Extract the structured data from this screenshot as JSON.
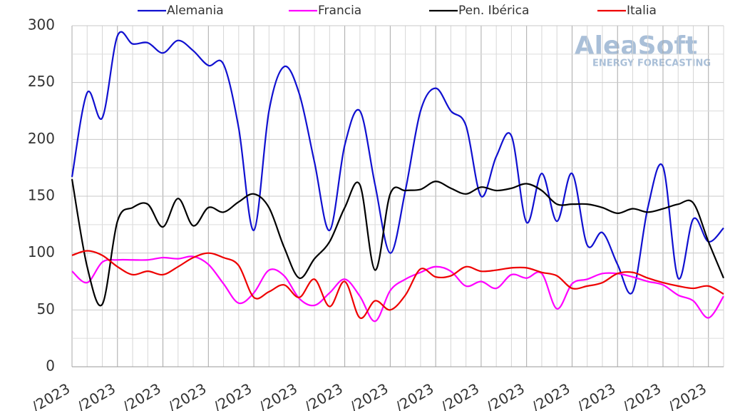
{
  "chart_data": {
    "type": "line",
    "watermark": {
      "brand": "AleaSoft",
      "tagline": "ENERGY FORECASTING"
    },
    "categories": [
      "/2023",
      null,
      null,
      "/2023",
      null,
      null,
      "/2023",
      null,
      null,
      "/2023",
      null,
      null,
      "/2023",
      null,
      null,
      "/2023",
      null,
      null,
      "/2023",
      null,
      null,
      "/2023",
      null,
      null,
      "/2023",
      null,
      null,
      "/2023",
      null,
      null,
      "/2023",
      null,
      null,
      "/2023",
      null,
      null,
      "/2023",
      null,
      null,
      "/2023",
      null,
      null,
      "/2023",
      null
    ],
    "series": [
      {
        "name": "Alemania",
        "color": "#1010d0",
        "values": [
          167,
          241,
          219,
          291,
          284,
          285,
          276,
          287,
          278,
          265,
          266,
          210,
          120,
          225,
          264,
          240,
          180,
          120,
          195,
          225,
          160,
          100,
          155,
          225,
          245,
          225,
          212,
          150,
          185,
          203,
          127,
          170,
          128,
          170,
          107,
          118,
          90,
          66,
          140,
          176,
          78,
          130,
          110,
          122
        ]
      },
      {
        "name": "Francia",
        "color": "#ff00ff",
        "values": [
          84,
          74,
          92,
          94,
          94,
          94,
          96,
          95,
          97,
          90,
          73,
          56,
          65,
          85,
          80,
          60,
          54,
          65,
          77,
          62,
          40,
          67,
          77,
          83,
          88,
          84,
          71,
          75,
          69,
          81,
          78,
          82,
          51,
          73,
          77,
          82,
          82,
          79,
          75,
          72,
          63,
          58,
          43,
          62
        ]
      },
      {
        "name": "Pen. Ibérica",
        "color": "#000000",
        "values": [
          165,
          88,
          55,
          128,
          140,
          143,
          123,
          148,
          124,
          140,
          136,
          145,
          152,
          140,
          105,
          78,
          95,
          110,
          140,
          160,
          85,
          152,
          155,
          156,
          163,
          157,
          152,
          158,
          155,
          157,
          161,
          155,
          143,
          143,
          143,
          140,
          135,
          139,
          136,
          139,
          143,
          144,
          110,
          78
        ]
      },
      {
        "name": "Italia",
        "color": "#ee0000",
        "values": [
          98,
          102,
          98,
          88,
          81,
          84,
          81,
          88,
          96,
          100,
          96,
          89,
          61,
          66,
          72,
          61,
          77,
          53,
          75,
          43,
          58,
          50,
          63,
          86,
          79,
          80,
          88,
          84,
          85,
          87,
          87,
          83,
          80,
          69,
          71,
          74,
          82,
          83,
          78,
          74,
          71,
          69,
          71,
          64
        ]
      }
    ],
    "ylim": [
      0,
      300
    ],
    "yticks": [
      0,
      50,
      100,
      150,
      200,
      250,
      300
    ],
    "grid": true
  }
}
